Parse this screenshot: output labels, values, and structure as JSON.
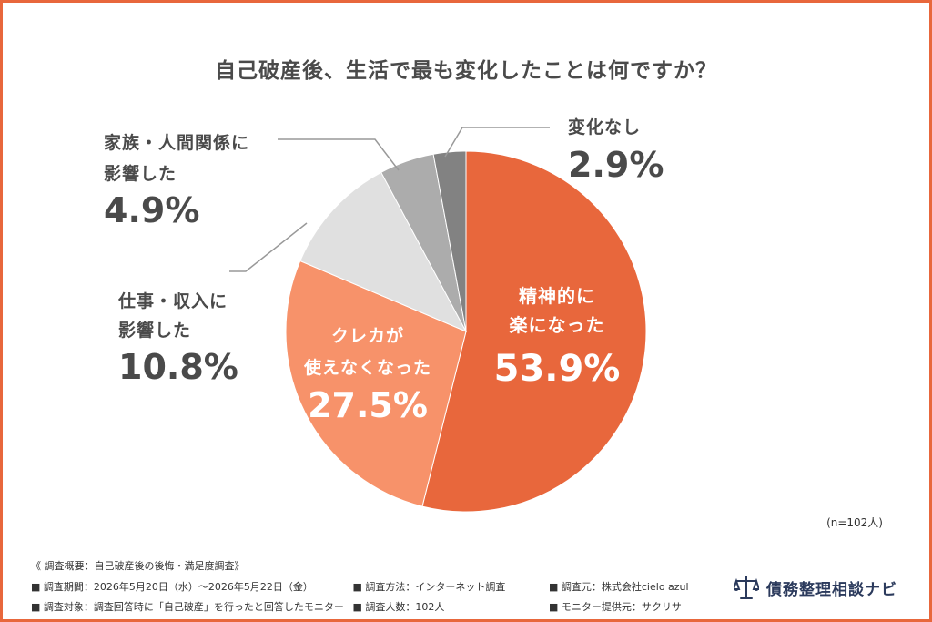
{
  "chart_data": {
    "type": "pie",
    "title": "自己破産後、生活で最も変化したことは何ですか？",
    "slices": [
      {
        "label_lines": [
          "精神的に",
          "楽になった"
        ],
        "value": 53.9,
        "value_label": "53.9%",
        "color": "#e8673c"
      },
      {
        "label_lines": [
          "クレカが",
          "使えなくなった"
        ],
        "value": 27.5,
        "value_label": "27.5%",
        "color": "#f7926a"
      },
      {
        "label_lines": [
          "仕事・収入に",
          "影響した"
        ],
        "value": 10.8,
        "value_label": "10.8%",
        "color": "#e0e0e0"
      },
      {
        "label_lines": [
          "家族・人間関係に",
          "影響した"
        ],
        "value": 4.9,
        "value_label": "4.9%",
        "color": "#acacac"
      },
      {
        "label_lines": [
          "変化なし"
        ],
        "value": 2.9,
        "value_label": "2.9%",
        "color": "#828282"
      }
    ],
    "sample_note": "(n=102人)"
  },
  "footer": {
    "summary": "《 調査概要：自己破産後の後悔・満足度調査》",
    "period": "■ 調査期間：2026年5月20日（水）～2026年5月22日（金）",
    "method": "■ 調査方法：インターネット調査",
    "source": "■ 調査元：株式会社cielo azul",
    "target": "■ 調査対象：調査回答時に「自己破産」を行ったと回答したモニター",
    "count": "■ 調査人数：102人",
    "provider": "■ モニター提供元：サクリサ"
  },
  "logo": {
    "text": "債務整理相談ナビ",
    "icon": "scales-of-justice-icon",
    "color": "#2b3a5c"
  },
  "colors": {
    "border": "#e8673c",
    "text": "#4a4a4a",
    "label": "#444444",
    "leader": "#999999"
  }
}
